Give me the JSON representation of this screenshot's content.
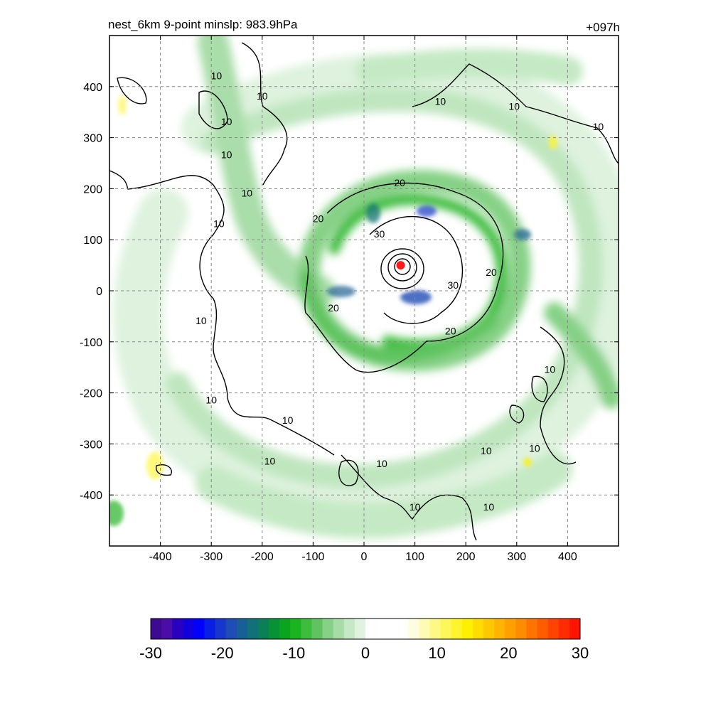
{
  "chart_data": {
    "type": "heatmap",
    "title_left": "nest_6km  9-point minslp: 983.9hPa",
    "title_right": "+097h",
    "xlabel": "",
    "ylabel": "",
    "xlim": [
      -500,
      500
    ],
    "ylim": [
      -500,
      500
    ],
    "grid": true,
    "x_ticks": [
      -400,
      -300,
      -200,
      -100,
      0,
      100,
      200,
      300,
      400
    ],
    "y_ticks": [
      400,
      300,
      200,
      100,
      0,
      -100,
      -200,
      -300,
      -400
    ],
    "storm_center": {
      "x": 72,
      "y": 50,
      "marker_color": "#ff1a1a"
    },
    "shaded_field": {
      "description": "tangential wind anomaly rainbands",
      "dominant_sign": "negative",
      "range": [
        -30,
        30
      ]
    },
    "contour_lines": {
      "levels": [
        10,
        20,
        30
      ],
      "labels": [
        {
          "text": "10",
          "x": -290,
          "y": 420
        },
        {
          "text": "10",
          "x": -200,
          "y": 380
        },
        {
          "text": "10",
          "x": -270,
          "y": 330
        },
        {
          "text": "10",
          "x": -270,
          "y": 265
        },
        {
          "text": "10",
          "x": -230,
          "y": 190
        },
        {
          "text": "10",
          "x": -285,
          "y": 130
        },
        {
          "text": "10",
          "x": 150,
          "y": 370
        },
        {
          "text": "10",
          "x": 295,
          "y": 360
        },
        {
          "text": "10",
          "x": 460,
          "y": 320
        },
        {
          "text": "20",
          "x": 70,
          "y": 210
        },
        {
          "text": "20",
          "x": -90,
          "y": 140
        },
        {
          "text": "30",
          "x": 30,
          "y": 110
        },
        {
          "text": "20",
          "x": 250,
          "y": 35
        },
        {
          "text": "30",
          "x": 175,
          "y": 10
        },
        {
          "text": "20",
          "x": -60,
          "y": -35
        },
        {
          "text": "20",
          "x": 170,
          "y": -80
        },
        {
          "text": "10",
          "x": -320,
          "y": -60
        },
        {
          "text": "10",
          "x": -300,
          "y": -215
        },
        {
          "text": "10",
          "x": -150,
          "y": -255
        },
        {
          "text": "10",
          "x": -185,
          "y": -335
        },
        {
          "text": "10",
          "x": 35,
          "y": -340
        },
        {
          "text": "10",
          "x": 100,
          "y": -425
        },
        {
          "text": "10",
          "x": 245,
          "y": -425
        },
        {
          "text": "10",
          "x": 240,
          "y": -315
        },
        {
          "text": "10",
          "x": 335,
          "y": -310
        },
        {
          "text": "10",
          "x": 365,
          "y": -155
        }
      ]
    },
    "colorbar": {
      "ticks": [
        -30,
        -20,
        -10,
        0,
        10,
        20,
        30
      ],
      "tick_labels": [
        "-30",
        "-20",
        "-10",
        "0",
        "10",
        "20",
        "30"
      ],
      "colors": [
        "#3d0a91",
        "#4b0ca8",
        "#2a00c0",
        "#1000dc",
        "#0000ff",
        "#0a1fe6",
        "#1737cc",
        "#1f4cb5",
        "#175f96",
        "#117078",
        "#0b8057",
        "#089236",
        "#0aa51f",
        "#1bb421",
        "#3dbd3d",
        "#5fc45f",
        "#86d186",
        "#a6dda6",
        "#c4e9c4",
        "#e0f3e0",
        "#ffffff",
        "#ffffff",
        "#ffffff",
        "#ffffff",
        "#fefde0",
        "#fefbb4",
        "#fef987",
        "#fef75a",
        "#fef52c",
        "#fef000",
        "#fedc00",
        "#fec800",
        "#feb400",
        "#fea000",
        "#fe8c00",
        "#fe7400",
        "#fe5c00",
        "#fe4400",
        "#fe2c00",
        "#fe1400"
      ]
    }
  }
}
